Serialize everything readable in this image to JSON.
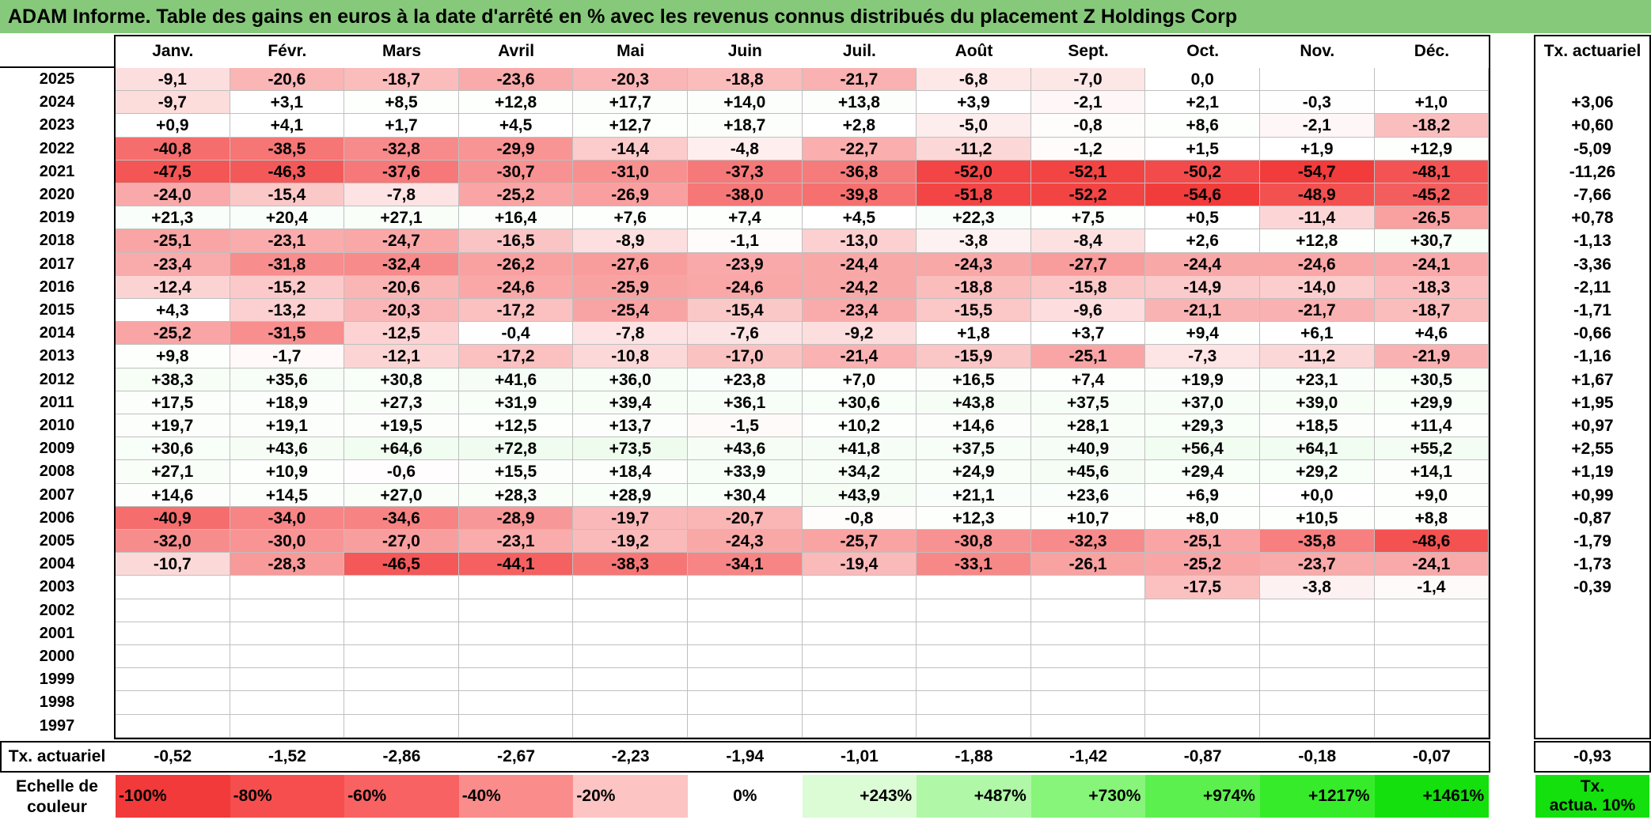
{
  "title": "ADAM Informe. Table des gains en euros à la date d'arrêté en % avec les revenus connus distribués du placement Z Holdings Corp",
  "months": [
    "Janv.",
    "Févr.",
    "Mars",
    "Avril",
    "Mai",
    "Juin",
    "Juil.",
    "Août",
    "Sept.",
    "Oct.",
    "Nov.",
    "Déc."
  ],
  "annual_header": "Tx. actuariel",
  "rows": [
    {
      "year": "2025",
      "values": [
        "-9,1",
        "-20,6",
        "-18,7",
        "-23,6",
        "-20,3",
        "-18,8",
        "-21,7",
        "-6,8",
        "-7,0",
        "0,0",
        "",
        ""
      ],
      "rate": ""
    },
    {
      "year": "2024",
      "values": [
        "-9,7",
        "+3,1",
        "+8,5",
        "+12,8",
        "+17,7",
        "+14,0",
        "+13,8",
        "+3,9",
        "-2,1",
        "+2,1",
        "-0,3",
        "+1,0"
      ],
      "rate": "+3,06"
    },
    {
      "year": "2023",
      "values": [
        "+0,9",
        "+4,1",
        "+1,7",
        "+4,5",
        "+12,7",
        "+18,7",
        "+2,8",
        "-5,0",
        "-0,8",
        "+8,6",
        "-2,1",
        "-18,2"
      ],
      "rate": "+0,60"
    },
    {
      "year": "2022",
      "values": [
        "-40,8",
        "-38,5",
        "-32,8",
        "-29,9",
        "-14,4",
        "-4,8",
        "-22,7",
        "-11,2",
        "-1,2",
        "+1,5",
        "+1,9",
        "+12,9"
      ],
      "rate": "-5,09"
    },
    {
      "year": "2021",
      "values": [
        "-47,5",
        "-46,3",
        "-37,6",
        "-30,7",
        "-31,0",
        "-37,3",
        "-36,8",
        "-52,0",
        "-52,1",
        "-50,2",
        "-54,7",
        "-48,1"
      ],
      "rate": "-11,26"
    },
    {
      "year": "2020",
      "values": [
        "-24,0",
        "-15,4",
        "-7,8",
        "-25,2",
        "-26,9",
        "-38,0",
        "-39,8",
        "-51,8",
        "-52,2",
        "-54,6",
        "-48,9",
        "-45,2"
      ],
      "rate": "-7,66"
    },
    {
      "year": "2019",
      "values": [
        "+21,3",
        "+20,4",
        "+27,1",
        "+16,4",
        "+7,6",
        "+7,4",
        "+4,5",
        "+22,3",
        "+7,5",
        "+0,5",
        "-11,4",
        "-26,5"
      ],
      "rate": "+0,78"
    },
    {
      "year": "2018",
      "values": [
        "-25,1",
        "-23,1",
        "-24,7",
        "-16,5",
        "-8,9",
        "-1,1",
        "-13,0",
        "-3,8",
        "-8,4",
        "+2,6",
        "+12,8",
        "+30,7"
      ],
      "rate": "-1,13"
    },
    {
      "year": "2017",
      "values": [
        "-23,4",
        "-31,8",
        "-32,4",
        "-26,2",
        "-27,6",
        "-23,9",
        "-24,4",
        "-24,3",
        "-27,7",
        "-24,4",
        "-24,6",
        "-24,1"
      ],
      "rate": "-3,36"
    },
    {
      "year": "2016",
      "values": [
        "-12,4",
        "-15,2",
        "-20,6",
        "-24,6",
        "-25,9",
        "-24,6",
        "-24,2",
        "-18,8",
        "-15,8",
        "-14,9",
        "-14,0",
        "-18,3"
      ],
      "rate": "-2,11"
    },
    {
      "year": "2015",
      "values": [
        "+4,3",
        "-13,2",
        "-20,3",
        "-17,2",
        "-25,4",
        "-15,4",
        "-23,4",
        "-15,5",
        "-9,6",
        "-21,1",
        "-21,7",
        "-18,7"
      ],
      "rate": "-1,71"
    },
    {
      "year": "2014",
      "values": [
        "-25,2",
        "-31,5",
        "-12,5",
        "-0,4",
        "-7,8",
        "-7,6",
        "-9,2",
        "+1,8",
        "+3,7",
        "+9,4",
        "+6,1",
        "+4,6"
      ],
      "rate": "-0,66"
    },
    {
      "year": "2013",
      "values": [
        "+9,8",
        "-1,7",
        "-12,1",
        "-17,2",
        "-10,8",
        "-17,0",
        "-21,4",
        "-15,9",
        "-25,1",
        "-7,3",
        "-11,2",
        "-21,9"
      ],
      "rate": "-1,16"
    },
    {
      "year": "2012",
      "values": [
        "+38,3",
        "+35,6",
        "+30,8",
        "+41,6",
        "+36,0",
        "+23,8",
        "+7,0",
        "+16,5",
        "+7,4",
        "+19,9",
        "+23,1",
        "+30,5"
      ],
      "rate": "+1,67"
    },
    {
      "year": "2011",
      "values": [
        "+17,5",
        "+18,9",
        "+27,3",
        "+31,9",
        "+39,4",
        "+36,1",
        "+30,6",
        "+43,8",
        "+37,5",
        "+37,0",
        "+39,0",
        "+29,9"
      ],
      "rate": "+1,95"
    },
    {
      "year": "2010",
      "values": [
        "+19,7",
        "+19,1",
        "+19,5",
        "+12,5",
        "+13,7",
        "-1,5",
        "+10,2",
        "+14,6",
        "+28,1",
        "+29,3",
        "+18,5",
        "+11,4"
      ],
      "rate": "+0,97"
    },
    {
      "year": "2009",
      "values": [
        "+30,6",
        "+43,6",
        "+64,6",
        "+72,8",
        "+73,5",
        "+43,6",
        "+41,8",
        "+37,5",
        "+40,9",
        "+56,4",
        "+64,1",
        "+55,2"
      ],
      "rate": "+2,55"
    },
    {
      "year": "2008",
      "values": [
        "+27,1",
        "+10,9",
        "-0,6",
        "+15,5",
        "+18,4",
        "+33,9",
        "+34,2",
        "+24,9",
        "+45,6",
        "+29,4",
        "+29,2",
        "+14,1"
      ],
      "rate": "+1,19"
    },
    {
      "year": "2007",
      "values": [
        "+14,6",
        "+14,5",
        "+27,0",
        "+28,3",
        "+28,9",
        "+30,4",
        "+43,9",
        "+21,1",
        "+23,6",
        "+6,9",
        "+0,0",
        "+9,0"
      ],
      "rate": "+0,99"
    },
    {
      "year": "2006",
      "values": [
        "-40,9",
        "-34,0",
        "-34,6",
        "-28,9",
        "-19,7",
        "-20,7",
        "-0,8",
        "+12,3",
        "+10,7",
        "+8,0",
        "+10,5",
        "+8,8"
      ],
      "rate": "-0,87"
    },
    {
      "year": "2005",
      "values": [
        "-32,0",
        "-30,0",
        "-27,0",
        "-23,1",
        "-19,2",
        "-24,3",
        "-25,7",
        "-30,8",
        "-32,3",
        "-25,1",
        "-35,8",
        "-48,6"
      ],
      "rate": "-1,79"
    },
    {
      "year": "2004",
      "values": [
        "-10,7",
        "-28,3",
        "-46,5",
        "-44,1",
        "-38,3",
        "-34,1",
        "-19,4",
        "-33,1",
        "-26,1",
        "-25,2",
        "-23,7",
        "-24,1"
      ],
      "rate": "-1,73"
    },
    {
      "year": "2003",
      "values": [
        "",
        "",
        "",
        "",
        "",
        "",
        "",
        "",
        "",
        "-17,5",
        "-3,8",
        "-1,4"
      ],
      "rate": "-0,39"
    },
    {
      "year": "2002",
      "values": [
        "",
        "",
        "",
        "",
        "",
        "",
        "",
        "",
        "",
        "",
        "",
        ""
      ],
      "rate": ""
    },
    {
      "year": "2001",
      "values": [
        "",
        "",
        "",
        "",
        "",
        "",
        "",
        "",
        "",
        "",
        "",
        ""
      ],
      "rate": ""
    },
    {
      "year": "2000",
      "values": [
        "",
        "",
        "",
        "",
        "",
        "",
        "",
        "",
        "",
        "",
        "",
        ""
      ],
      "rate": ""
    },
    {
      "year": "1999",
      "values": [
        "",
        "",
        "",
        "",
        "",
        "",
        "",
        "",
        "",
        "",
        "",
        ""
      ],
      "rate": ""
    },
    {
      "year": "1998",
      "values": [
        "",
        "",
        "",
        "",
        "",
        "",
        "",
        "",
        "",
        "",
        "",
        ""
      ],
      "rate": ""
    },
    {
      "year": "1997",
      "values": [
        "",
        "",
        "",
        "",
        "",
        "",
        "",
        "",
        "",
        "",
        "",
        ""
      ],
      "rate": ""
    }
  ],
  "footer": {
    "label": "Tx. actuariel",
    "values": [
      "-0,52",
      "-1,52",
      "-2,86",
      "-2,67",
      "-2,23",
      "-1,94",
      "-1,01",
      "-1,88",
      "-1,42",
      "-0,87",
      "-0,18",
      "-0,07"
    ],
    "total": "-0,93"
  },
  "legend": {
    "label_line1": "Echelle de",
    "label_line2": "couleur",
    "items": [
      {
        "label": "-100%",
        "color": "#f23a3a"
      },
      {
        "label": "-80%",
        "color": "#f64e4e"
      },
      {
        "label": "-60%",
        "color": "#f86262"
      },
      {
        "label": "-40%",
        "color": "#fa8c8c"
      },
      {
        "label": "-20%",
        "color": "#fdc4c4"
      },
      {
        "label": "0%",
        "color": "#ffffff"
      },
      {
        "label": "+243%",
        "color": "#dcfcd6"
      },
      {
        "label": "+487%",
        "color": "#b0f7a8"
      },
      {
        "label": "+730%",
        "color": "#86f57a"
      },
      {
        "label": "+974%",
        "color": "#5cf04e"
      },
      {
        "label": "+1217%",
        "color": "#36ec2a"
      },
      {
        "label": "+1461%",
        "color": "#14e00e"
      }
    ],
    "right_line1": "Tx.",
    "right_line2": "actua. 10%",
    "right_color": "#14e00e"
  },
  "colors": {
    "title_bg": "#86c97a",
    "negative_full": "#f23a3a",
    "positive_tint": "#e9fbe6",
    "neutral": "#ffffff"
  }
}
